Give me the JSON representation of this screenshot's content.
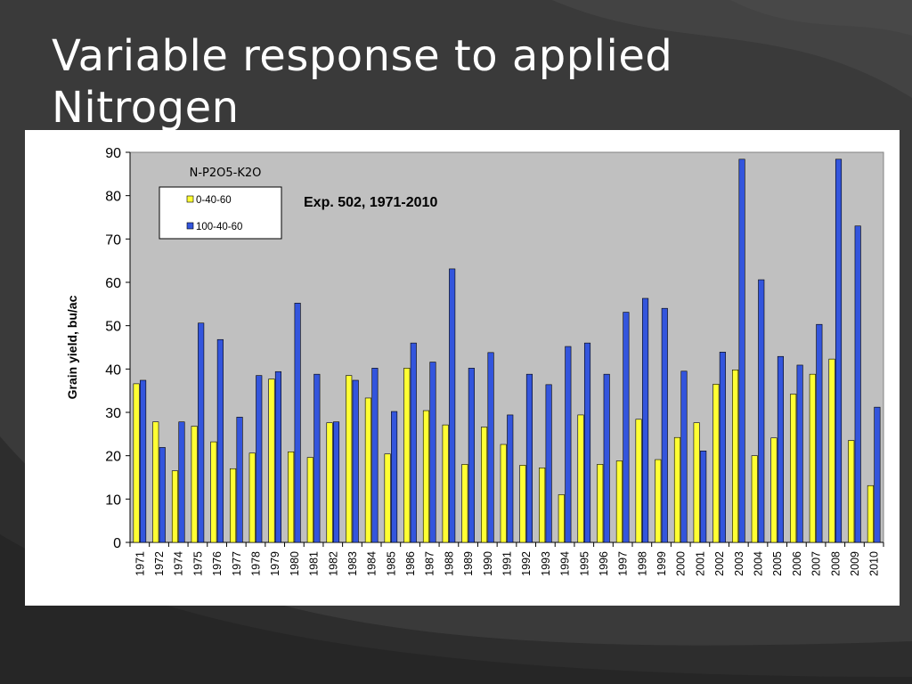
{
  "slide": {
    "title": "Variable response to applied Nitrogen"
  },
  "chart_data": {
    "type": "bar",
    "title": "",
    "annotation": "Exp. 502, 1971-2010",
    "xlabel": "",
    "ylabel": "Grain yield, bu/ac",
    "ylim": [
      0,
      90
    ],
    "yticks": [
      0,
      10,
      20,
      30,
      40,
      50,
      60,
      70,
      80,
      90
    ],
    "grid": false,
    "plot_background": "#c0c0c0",
    "legend": {
      "title": "N-P2O5-K2O",
      "placement": "top-left"
    },
    "categories": [
      "1971",
      "1972",
      "1974",
      "1975",
      "1976",
      "1977",
      "1978",
      "1979",
      "1980",
      "1981",
      "1982",
      "1983",
      "1984",
      "1985",
      "1986",
      "1987",
      "1988",
      "1989",
      "1990",
      "1991",
      "1992",
      "1993",
      "1994",
      "1995",
      "1996",
      "1997",
      "1998",
      "1999",
      "2000",
      "2001",
      "2002",
      "2003",
      "2004",
      "2005",
      "2006",
      "2007",
      "2008",
      "2009",
      "2010"
    ],
    "series": [
      {
        "name": "0-40-60",
        "color": "#ffff33",
        "values": [
          36.6,
          27.8,
          16.5,
          26.8,
          23.2,
          17.0,
          20.6,
          37.7,
          20.9,
          19.6,
          27.6,
          38.5,
          33.3,
          20.4,
          40.2,
          30.4,
          27.1,
          18.0,
          26.6,
          22.6,
          17.8,
          17.2,
          11.0,
          29.4,
          18.0,
          18.8,
          28.4,
          19.1,
          24.2,
          27.6,
          36.5,
          39.8,
          20.0,
          24.1,
          34.2,
          38.8,
          42.3,
          23.5,
          13.1
        ]
      },
      {
        "name": "100-40-60",
        "color": "#3355dd",
        "values": [
          37.4,
          21.9,
          27.8,
          50.6,
          46.8,
          28.9,
          38.5,
          39.4,
          55.2,
          38.8,
          27.8,
          37.4,
          40.2,
          30.2,
          46.0,
          41.6,
          63.1,
          40.2,
          43.8,
          29.4,
          38.8,
          36.4,
          45.2,
          46.0,
          38.8,
          53.1,
          56.3,
          54.0,
          39.5,
          21.1,
          43.9,
          88.4,
          60.6,
          42.9,
          40.9,
          50.3,
          88.4,
          73.0,
          31.2
        ]
      }
    ]
  }
}
